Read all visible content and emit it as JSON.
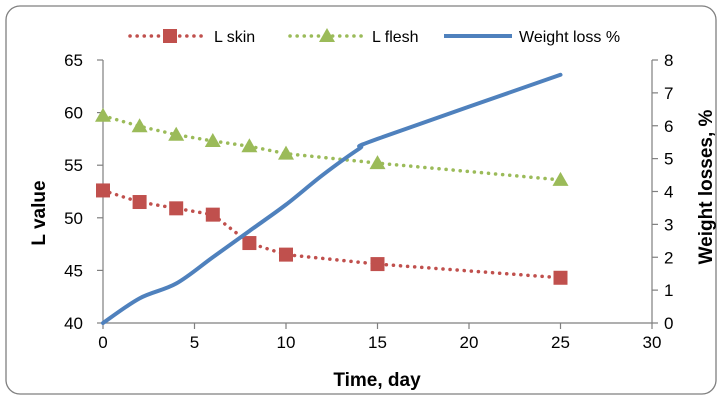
{
  "chart_data": {
    "type": "line",
    "xlabel": "Time, day",
    "ylabel_left": "L value",
    "ylabel_right": "Weight losses, %",
    "xlim": [
      0,
      30
    ],
    "xticks": [
      0,
      5,
      10,
      15,
      20,
      25,
      30
    ],
    "ylim_left": [
      40,
      65
    ],
    "yticks_left": [
      40,
      45,
      50,
      55,
      60,
      65
    ],
    "ylim_right": [
      0,
      8
    ],
    "yticks_right": [
      0,
      1,
      2,
      3,
      4,
      5,
      6,
      7,
      8
    ],
    "grid": false,
    "legend_position": "top",
    "series": [
      {
        "name": "L skin",
        "axis": "left",
        "style": "dotted-square",
        "color": "#C0504D",
        "x": [
          0,
          2,
          4,
          6,
          8,
          10,
          15,
          25
        ],
        "y": [
          52.6,
          51.5,
          50.9,
          50.3,
          47.6,
          46.5,
          45.6,
          44.3
        ]
      },
      {
        "name": "L flesh",
        "axis": "left",
        "style": "dotted-triangle",
        "color": "#9BBB59",
        "x": [
          0,
          2,
          4,
          6,
          8,
          10,
          15,
          25
        ],
        "y": [
          59.7,
          58.7,
          57.9,
          57.3,
          56.8,
          56.1,
          55.2,
          53.6
        ]
      },
      {
        "name": "Weight loss %",
        "axis": "right",
        "style": "solid",
        "color": "#4F81BD",
        "x": [
          0,
          2,
          4,
          6,
          8,
          10,
          12,
          14,
          15,
          25
        ],
        "y": [
          0,
          0.75,
          1.2,
          2.0,
          2.8,
          3.6,
          4.5,
          5.3,
          5.6,
          7.55
        ]
      }
    ]
  }
}
